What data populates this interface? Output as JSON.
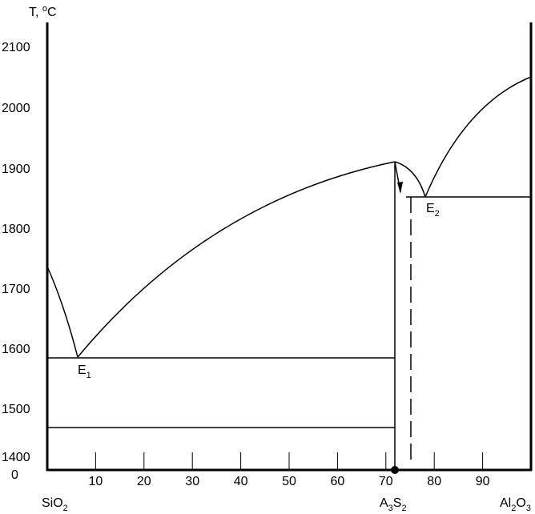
{
  "axis": {
    "y_title": [
      "T, ",
      "o",
      "C"
    ],
    "y_ticks": [
      "2100",
      "2000",
      "1900",
      "1800",
      "1700",
      "1600",
      "1500",
      "1400",
      "0"
    ],
    "x_ticks": [
      "10",
      "20",
      "30",
      "40",
      "50",
      "60",
      "70",
      "80",
      "90"
    ]
  },
  "points": {
    "e1": [
      "E",
      "1"
    ],
    "e2": [
      "E",
      "2"
    ]
  },
  "components": {
    "sio2": [
      "SiO",
      "2"
    ],
    "a3s2": [
      "A",
      "3",
      "S",
      "2"
    ],
    "al2o3": [
      "Al",
      "2",
      "O",
      "3"
    ]
  }
}
